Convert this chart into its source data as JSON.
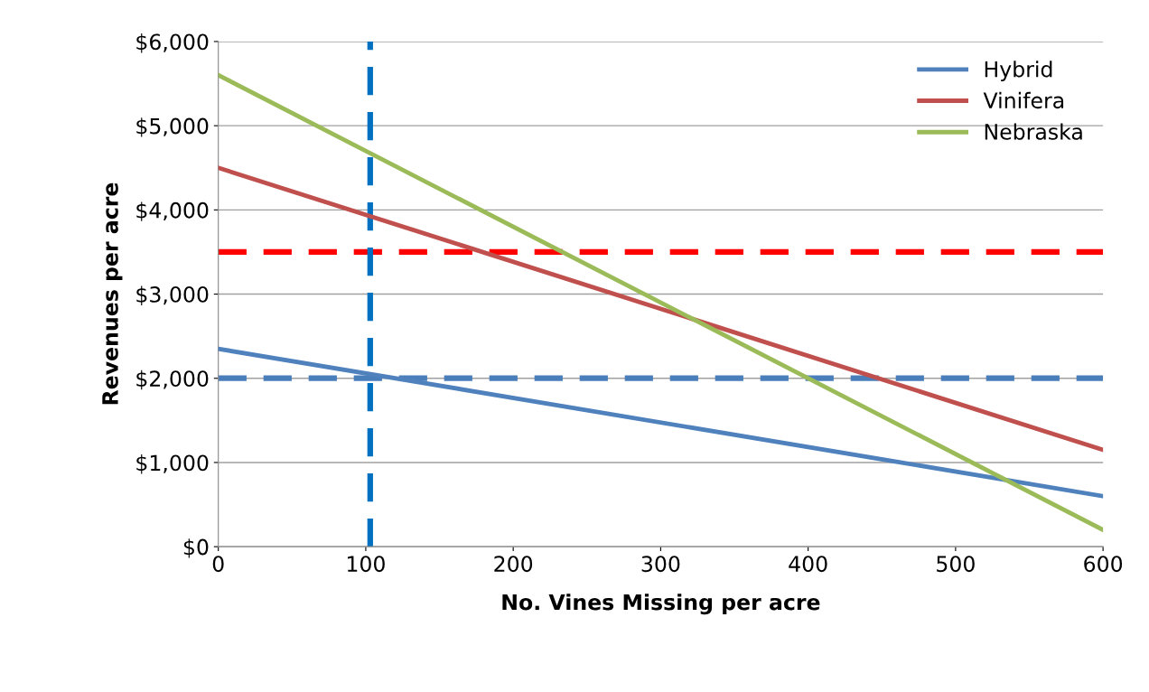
{
  "chart_data": {
    "type": "line",
    "xlabel": "No. Vines Missing per acre",
    "ylabel": "Revenues per acre",
    "x": [
      0,
      600
    ],
    "series": [
      {
        "name": "Hybrid",
        "color": "#4f81bd",
        "values": [
          2350,
          600
        ]
      },
      {
        "name": "Vinifera",
        "color": "#c0504d",
        "values": [
          4500,
          1150
        ]
      },
      {
        "name": "Nebraska",
        "color": "#9bbb59",
        "values": [
          5600,
          200
        ]
      }
    ],
    "ref_lines": [
      {
        "axis": "y",
        "value": 3500,
        "label": null,
        "color": "#ff0000",
        "line_style": "dashed"
      },
      {
        "axis": "y",
        "value": 2000,
        "label": null,
        "color": "#4a7ebb",
        "line_style": "dashed"
      },
      {
        "axis": "x",
        "value": 103,
        "label": null,
        "color": "#0070c0",
        "line_style": "dashed"
      }
    ],
    "xlim": [
      0,
      600
    ],
    "xticks": [
      0,
      100,
      200,
      300,
      400,
      500,
      600
    ],
    "ylim": [
      0,
      6000
    ],
    "yticks": [
      {
        "value": 0,
        "label": "$0"
      },
      {
        "value": 1000,
        "label": "$1,000"
      },
      {
        "value": 2000,
        "label": "$2,000"
      },
      {
        "value": 3000,
        "label": "$3,000"
      },
      {
        "value": 4000,
        "label": "$4,000"
      },
      {
        "value": 5000,
        "label": "$5,000"
      },
      {
        "value": 6000,
        "label": "$6,000"
      }
    ],
    "grid": "y",
    "legend": "top right",
    "marker": "none",
    "line_style": "solid"
  }
}
